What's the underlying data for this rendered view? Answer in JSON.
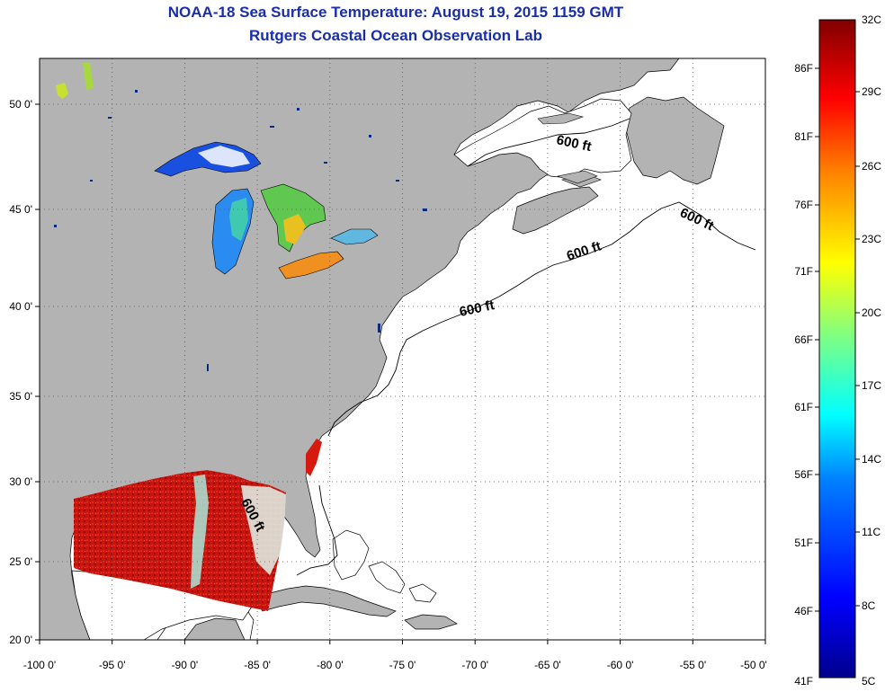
{
  "header": {
    "title": "NOAA-18 Sea Surface Temperature:  August 19, 2015 1159 GMT",
    "subtitle": "Rutgers Coastal Ocean Observation Lab"
  },
  "map": {
    "lon_ticks": [
      "-100 0'",
      "-95 0'",
      "-90 0'",
      "-85 0'",
      "-80 0'",
      "-75 0'",
      "-70 0'",
      "-65 0'",
      "-60 0'",
      "-55 0'",
      "-50 0'"
    ],
    "lat_ticks": [
      "50 0'",
      "45 0'",
      "40 0'",
      "35 0'",
      "30 0'",
      "25 0'",
      "20 0'"
    ],
    "depth_labels": [
      "600 ft",
      "600 ft",
      "600 ft",
      "600 ft",
      "600 ft"
    ],
    "colors": {
      "land": "#b3b3b3",
      "ocean": "#ffffff",
      "grid": "#555555"
    }
  },
  "colorbar": {
    "celsius_labels": [
      "32C",
      "29C",
      "26C",
      "23C",
      "20C",
      "17C",
      "14C",
      "11C",
      "8C",
      "5C"
    ],
    "fahrenheit_labels": [
      "86F",
      "81F",
      "76F",
      "71F",
      "66F",
      "61F",
      "56F",
      "51F",
      "46F",
      "41F"
    ]
  }
}
